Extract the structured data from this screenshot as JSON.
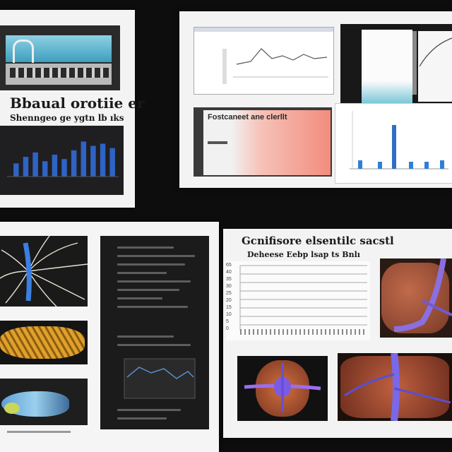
{
  "panels": {
    "top_left": {
      "heading": "Bbaual orotiie er",
      "subheading": "Shenngeo ge ygtn lb ıks",
      "chart_data": {
        "type": "bar",
        "title": "",
        "xlabel": "",
        "ylabel": "",
        "categories": [
          "",
          "",
          "",
          "",
          "",
          "",
          "",
          "",
          "",
          "",
          ""
        ],
        "values": [
          30,
          45,
          55,
          35,
          50,
          40,
          60,
          80,
          70,
          75,
          65
        ],
        "ylim": [
          0,
          100
        ],
        "bar_color": "#2f63c4"
      }
    },
    "top_right": {
      "banner_text": "Fostcaneet ane clerllt"
    },
    "bottom_right": {
      "heading": "Gcnifisore elsentilc sacstl",
      "subheading": "Deheese Eebp lsap ts Bnlı",
      "y_ticks": [
        "65",
        "40",
        "35",
        "30",
        "25",
        "20",
        "15",
        "10",
        "5",
        "0"
      ]
    }
  },
  "colors": {
    "background": "#0d0d0d",
    "panel": "#f3f3f3",
    "accent_blue": "#2f63c4",
    "salmon": "#f28c7e"
  }
}
